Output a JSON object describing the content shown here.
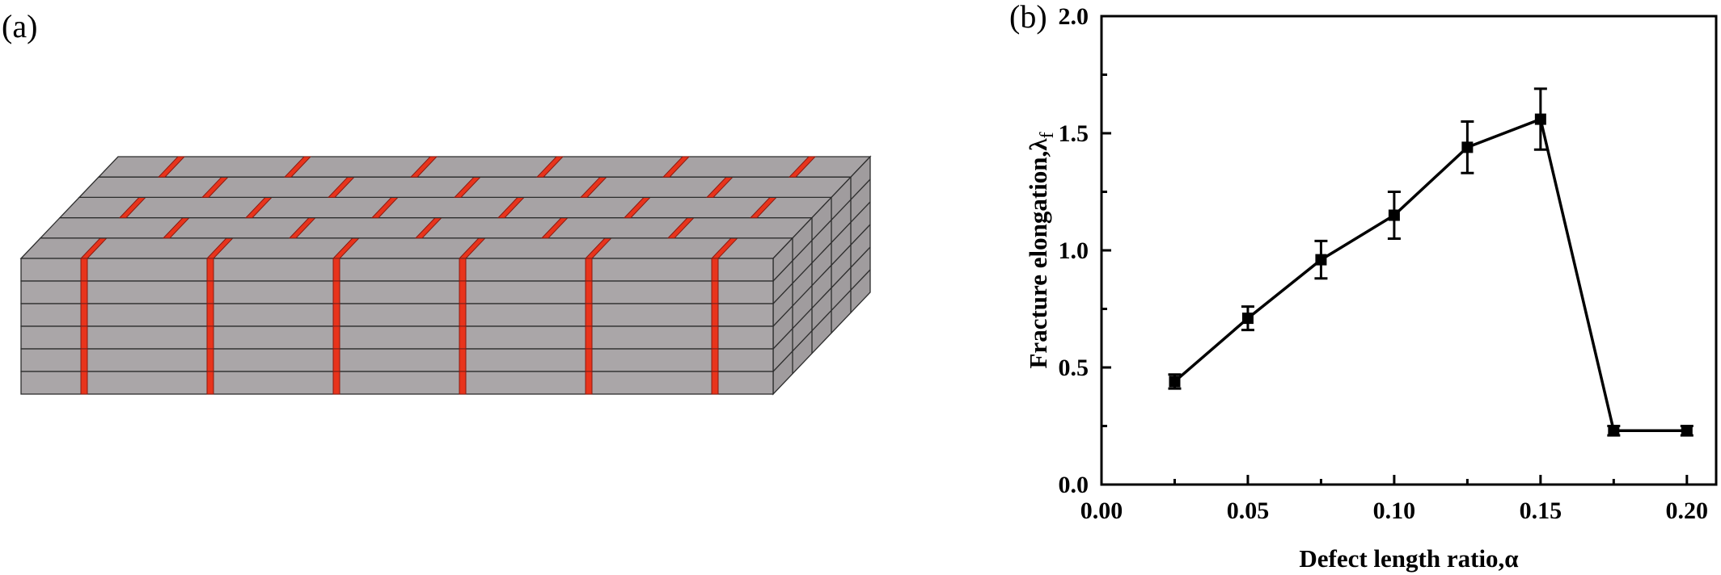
{
  "panels": {
    "left_label": "(a)",
    "right_label": "(b)"
  },
  "chart_data": {
    "type": "line",
    "title": "",
    "xlabel": "Defect length ratio,α",
    "ylabel_main": "Fracture elongation,λ",
    "ylabel_sub": "f",
    "xlim": [
      0.0,
      0.21
    ],
    "ylim": [
      0.0,
      2.0
    ],
    "x_ticks": [
      0.0,
      0.05,
      0.1,
      0.15,
      0.2
    ],
    "x_tick_labels": [
      "0.00",
      "0.05",
      "0.10",
      "0.15",
      "0.20"
    ],
    "y_ticks": [
      0.0,
      0.5,
      1.0,
      1.5,
      2.0
    ],
    "y_tick_labels": [
      "0.0",
      "0.5",
      "1.0",
      "1.5",
      "2.0"
    ],
    "grid": false,
    "legend": "none",
    "series": [
      {
        "marker": "square",
        "color": "#000000",
        "x": [
          0.025,
          0.05,
          0.075,
          0.1,
          0.125,
          0.15,
          0.175,
          0.2
        ],
        "y": [
          0.44,
          0.71,
          0.96,
          1.15,
          1.44,
          1.56,
          0.23,
          0.23
        ],
        "error": [
          0.03,
          0.05,
          0.08,
          0.1,
          0.11,
          0.13,
          0.02,
          0.02
        ]
      }
    ]
  }
}
